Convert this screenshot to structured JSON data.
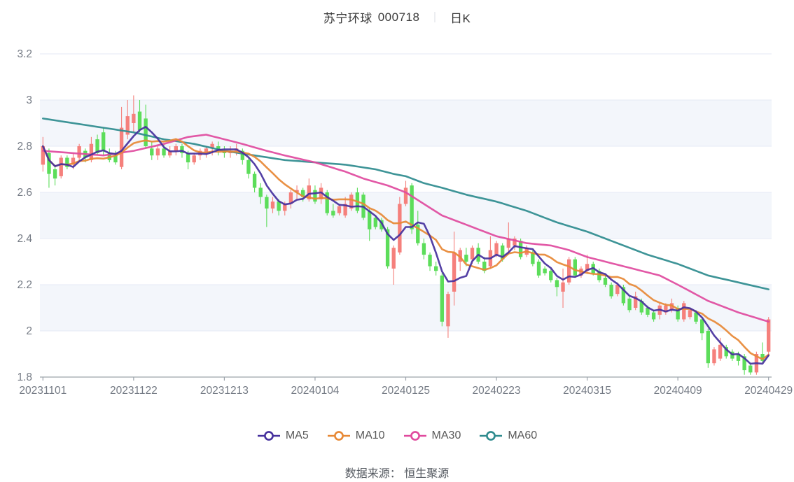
{
  "title": {
    "stock_name": "苏宁环球",
    "stock_code": "000718",
    "separator": "｜",
    "period": "日K"
  },
  "footer": {
    "source_label": "数据来源：",
    "source_name": "恒生聚源"
  },
  "legend": [
    {
      "label": "MA5",
      "color": "#45309d"
    },
    {
      "label": "MA10",
      "color": "#e78835"
    },
    {
      "label": "MA30",
      "color": "#e04a9e"
    },
    {
      "label": "MA60",
      "color": "#2e8b8e"
    }
  ],
  "chart_data": {
    "type": "candlestick",
    "title": "苏宁环球 000718 日K",
    "ylim": [
      1.8,
      3.2
    ],
    "y_tick_labels": [
      "1.8",
      "2",
      "2.2",
      "2.4",
      "2.6",
      "2.8",
      "3",
      "3.2"
    ],
    "y_tick_values": [
      1.8,
      2.0,
      2.2,
      2.4,
      2.6,
      2.8,
      3.0,
      3.2
    ],
    "x_tick_labels": [
      "20231101",
      "20231122",
      "20231213",
      "20240104",
      "20240125",
      "20240223",
      "20240315",
      "20240409",
      "20240429"
    ],
    "x_tick_every": 15,
    "grid": "horizontal-bands",
    "legend_position": "bottom",
    "up_color": "#f5807c",
    "down_color": "#5cdd5a",
    "band_fill": "#f3f6fb",
    "grid_color": "#e4eaf4",
    "axis_color": "#9ca3ab",
    "label_color": "#757b85",
    "columns": [
      "date",
      "open",
      "high",
      "low",
      "close"
    ],
    "candles": [
      [
        "20231101",
        2.72,
        2.84,
        2.69,
        2.8
      ],
      [
        "20231102",
        2.77,
        2.79,
        2.62,
        2.68
      ],
      [
        "20231103",
        2.7,
        2.72,
        2.63,
        2.66
      ],
      [
        "20231106",
        2.67,
        2.76,
        2.66,
        2.75
      ],
      [
        "20231107",
        2.75,
        2.76,
        2.7,
        2.71
      ],
      [
        "20231108",
        2.72,
        2.77,
        2.7,
        2.75
      ],
      [
        "20231109",
        2.75,
        2.81,
        2.73,
        2.8
      ],
      [
        "20231110",
        2.78,
        2.79,
        2.73,
        2.75
      ],
      [
        "20231113",
        2.74,
        2.84,
        2.73,
        2.81
      ],
      [
        "20231114",
        2.83,
        2.85,
        2.76,
        2.77
      ],
      [
        "20231115",
        2.86,
        2.88,
        2.76,
        2.78
      ],
      [
        "20231116",
        2.77,
        2.79,
        2.73,
        2.74
      ],
      [
        "20231117",
        2.76,
        2.78,
        2.72,
        2.73
      ],
      [
        "20231120",
        2.71,
        2.97,
        2.7,
        2.88
      ],
      [
        "20231121",
        2.85,
        3.0,
        2.83,
        2.93
      ],
      [
        "20231122",
        2.9,
        3.02,
        2.86,
        2.94
      ],
      [
        "20231123",
        2.95,
        3.0,
        2.86,
        2.87
      ],
      [
        "20231124",
        2.92,
        2.98,
        2.79,
        2.8
      ],
      [
        "20231127",
        2.79,
        2.82,
        2.74,
        2.76
      ],
      [
        "20231128",
        2.76,
        2.8,
        2.74,
        2.79
      ],
      [
        "20231129",
        2.79,
        2.81,
        2.75,
        2.76
      ],
      [
        "20231130",
        2.76,
        2.8,
        2.75,
        2.78
      ],
      [
        "20231201",
        2.78,
        2.81,
        2.76,
        2.8
      ],
      [
        "20231204",
        2.8,
        2.81,
        2.75,
        2.77
      ],
      [
        "20231205",
        2.77,
        2.78,
        2.7,
        2.73
      ],
      [
        "20231206",
        2.73,
        2.77,
        2.72,
        2.76
      ],
      [
        "20231207",
        2.76,
        2.79,
        2.74,
        2.78
      ],
      [
        "20231208",
        2.77,
        2.8,
        2.75,
        2.79
      ],
      [
        "20231211",
        2.79,
        2.82,
        2.76,
        2.81
      ],
      [
        "20231212",
        2.8,
        2.82,
        2.76,
        2.78
      ],
      [
        "20231213",
        2.78,
        2.8,
        2.75,
        2.77
      ],
      [
        "20231214",
        2.77,
        2.8,
        2.75,
        2.78
      ],
      [
        "20231215",
        2.78,
        2.81,
        2.76,
        2.79
      ],
      [
        "20231218",
        2.78,
        2.79,
        2.72,
        2.74
      ],
      [
        "20231219",
        2.74,
        2.75,
        2.66,
        2.68
      ],
      [
        "20231220",
        2.68,
        2.69,
        2.6,
        2.62
      ],
      [
        "20231221",
        2.62,
        2.64,
        2.55,
        2.58
      ],
      [
        "20231222",
        2.58,
        2.59,
        2.45,
        2.53
      ],
      [
        "20231225",
        2.53,
        2.58,
        2.51,
        2.56
      ],
      [
        "20231226",
        2.56,
        2.57,
        2.5,
        2.52
      ],
      [
        "20231227",
        2.52,
        2.56,
        2.5,
        2.55
      ],
      [
        "20231228",
        2.55,
        2.61,
        2.53,
        2.6
      ],
      [
        "20231229",
        2.6,
        2.63,
        2.57,
        2.61
      ],
      [
        "20240102",
        2.61,
        2.62,
        2.56,
        2.58
      ],
      [
        "20240103",
        2.57,
        2.66,
        2.56,
        2.63
      ],
      [
        "20240104",
        2.61,
        2.63,
        2.55,
        2.56
      ],
      [
        "20240105",
        2.57,
        2.64,
        2.55,
        2.62
      ],
      [
        "20240108",
        2.6,
        2.61,
        2.5,
        2.51
      ],
      [
        "20240109",
        2.52,
        2.55,
        2.49,
        2.5
      ],
      [
        "20240110",
        2.51,
        2.55,
        2.5,
        2.54
      ],
      [
        "20240111",
        2.5,
        2.58,
        2.49,
        2.55
      ],
      [
        "20240112",
        2.53,
        2.6,
        2.52,
        2.59
      ],
      [
        "20240115",
        2.6,
        2.62,
        2.51,
        2.52
      ],
      [
        "20240116",
        2.59,
        2.6,
        2.48,
        2.49
      ],
      [
        "20240117",
        2.52,
        2.53,
        2.39,
        2.44
      ],
      [
        "20240118",
        2.49,
        2.5,
        2.44,
        2.45
      ],
      [
        "20240119",
        2.48,
        2.49,
        2.43,
        2.44
      ],
      [
        "20240122",
        2.44,
        2.45,
        2.27,
        2.28
      ],
      [
        "20240123",
        2.27,
        2.37,
        2.2,
        2.36
      ],
      [
        "20240124",
        2.34,
        2.58,
        2.33,
        2.55
      ],
      [
        "20240125",
        2.55,
        2.65,
        2.54,
        2.62
      ],
      [
        "20240126",
        2.63,
        2.64,
        2.42,
        2.44
      ],
      [
        "20240129",
        2.46,
        2.52,
        2.37,
        2.38
      ],
      [
        "20240130",
        2.38,
        2.4,
        2.31,
        2.33
      ],
      [
        "20240131",
        2.33,
        2.34,
        2.26,
        2.28
      ],
      [
        "20240201",
        2.28,
        2.3,
        2.24,
        2.26
      ],
      [
        "20240202",
        2.24,
        2.25,
        2.02,
        2.04
      ],
      [
        "20240205",
        2.02,
        2.17,
        1.97,
        2.16
      ],
      [
        "20240206",
        2.17,
        2.43,
        2.11,
        2.34
      ],
      [
        "20240207",
        2.3,
        2.36,
        2.26,
        2.35
      ],
      [
        "20240208",
        2.33,
        2.36,
        2.28,
        2.3
      ],
      [
        "20240219",
        2.31,
        2.37,
        2.29,
        2.36
      ],
      [
        "20240220",
        2.36,
        2.38,
        2.29,
        2.3
      ],
      [
        "20240221",
        2.3,
        2.32,
        2.25,
        2.26
      ],
      [
        "20240222",
        2.28,
        2.41,
        2.27,
        2.35
      ],
      [
        "20240223",
        2.33,
        2.39,
        2.32,
        2.38
      ],
      [
        "20240226",
        2.37,
        2.38,
        2.3,
        2.31
      ],
      [
        "20240227",
        2.36,
        2.47,
        2.33,
        2.4
      ],
      [
        "20240228",
        2.37,
        2.41,
        2.35,
        2.4
      ],
      [
        "20240229",
        2.39,
        2.4,
        2.31,
        2.32
      ],
      [
        "20240301",
        2.33,
        2.37,
        2.32,
        2.36
      ],
      [
        "20240304",
        2.34,
        2.35,
        2.28,
        2.29
      ],
      [
        "20240305",
        2.3,
        2.31,
        2.23,
        2.24
      ],
      [
        "20240306",
        2.27,
        2.28,
        2.24,
        2.25
      ],
      [
        "20240307",
        2.26,
        2.27,
        2.21,
        2.22
      ],
      [
        "20240308",
        2.22,
        2.23,
        2.15,
        2.19
      ],
      [
        "20240311",
        2.17,
        2.27,
        2.1,
        2.21
      ],
      [
        "20240312",
        2.21,
        2.32,
        2.2,
        2.31
      ],
      [
        "20240313",
        2.31,
        2.32,
        2.23,
        2.24
      ],
      [
        "20240314",
        2.24,
        2.28,
        2.23,
        2.27
      ],
      [
        "20240315",
        2.26,
        2.33,
        2.25,
        2.29
      ],
      [
        "20240318",
        2.29,
        2.3,
        2.24,
        2.25
      ],
      [
        "20240319",
        2.26,
        2.27,
        2.21,
        2.22
      ],
      [
        "20240320",
        2.23,
        2.24,
        2.19,
        2.2
      ],
      [
        "20240321",
        2.2,
        2.21,
        2.14,
        2.15
      ],
      [
        "20240322",
        2.16,
        2.21,
        2.15,
        2.2
      ],
      [
        "20240325",
        2.19,
        2.2,
        2.11,
        2.12
      ],
      [
        "20240326",
        2.14,
        2.15,
        2.08,
        2.09
      ],
      [
        "20240327",
        2.1,
        2.17,
        2.09,
        2.15
      ],
      [
        "20240328",
        2.13,
        2.14,
        2.07,
        2.08
      ],
      [
        "20240329",
        2.1,
        2.11,
        2.06,
        2.07
      ],
      [
        "20240401",
        2.08,
        2.09,
        2.04,
        2.05
      ],
      [
        "20240402",
        2.07,
        2.12,
        2.05,
        2.11
      ],
      [
        "20240403",
        2.08,
        2.12,
        2.07,
        2.11
      ],
      [
        "20240408",
        2.09,
        2.14,
        2.08,
        2.12
      ],
      [
        "20240409",
        2.1,
        2.11,
        2.04,
        2.05
      ],
      [
        "20240410",
        2.05,
        2.13,
        2.04,
        2.12
      ],
      [
        "20240411",
        2.06,
        2.1,
        2.05,
        2.09
      ],
      [
        "20240412",
        2.08,
        2.09,
        2.03,
        2.04
      ],
      [
        "20240415",
        2.05,
        2.06,
        1.96,
        1.99
      ],
      [
        "20240416",
        2.0,
        2.01,
        1.84,
        1.86
      ],
      [
        "20240417",
        1.86,
        1.93,
        1.85,
        1.92
      ],
      [
        "20240418",
        1.88,
        1.97,
        1.87,
        1.94
      ],
      [
        "20240419",
        1.93,
        1.94,
        1.88,
        1.89
      ],
      [
        "20240422",
        1.91,
        1.92,
        1.87,
        1.88
      ],
      [
        "20240423",
        1.9,
        1.91,
        1.85,
        1.87
      ],
      [
        "20240424",
        1.89,
        1.9,
        1.81,
        1.83
      ],
      [
        "20240425",
        1.85,
        1.86,
        1.81,
        1.82
      ],
      [
        "20240426",
        1.82,
        1.91,
        1.81,
        1.9
      ],
      [
        "20240428",
        1.9,
        1.95,
        1.86,
        1.87
      ],
      [
        "20240429",
        1.91,
        2.06,
        1.89,
        2.05
      ]
    ],
    "series": [
      {
        "name": "MA5",
        "color": "#45309d",
        "derive": "sma",
        "window": 5
      },
      {
        "name": "MA10",
        "color": "#e78835",
        "derive": "sma",
        "window": 10
      },
      {
        "name": "MA30",
        "color": "#e04a9e",
        "derive": "waypoints",
        "waypoints": [
          [
            0,
            2.78
          ],
          [
            5,
            2.77
          ],
          [
            10,
            2.76
          ],
          [
            15,
            2.78
          ],
          [
            20,
            2.81
          ],
          [
            24,
            2.84
          ],
          [
            27,
            2.85
          ],
          [
            30,
            2.83
          ],
          [
            33,
            2.81
          ],
          [
            37,
            2.78
          ],
          [
            40,
            2.76
          ],
          [
            45,
            2.73
          ],
          [
            50,
            2.69
          ],
          [
            53,
            2.66
          ],
          [
            57,
            2.63
          ],
          [
            60,
            2.6
          ],
          [
            63,
            2.55
          ],
          [
            66,
            2.5
          ],
          [
            70,
            2.46
          ],
          [
            73,
            2.43
          ],
          [
            75,
            2.41
          ],
          [
            80,
            2.38
          ],
          [
            84,
            2.37
          ],
          [
            87,
            2.35
          ],
          [
            90,
            2.32
          ],
          [
            93,
            2.3
          ],
          [
            96,
            2.28
          ],
          [
            99,
            2.26
          ],
          [
            102,
            2.24
          ],
          [
            105,
            2.2
          ],
          [
            110,
            2.13
          ],
          [
            115,
            2.08
          ],
          [
            120,
            2.04
          ]
        ]
      },
      {
        "name": "MA60",
        "color": "#2e8b8e",
        "derive": "waypoints",
        "waypoints": [
          [
            0,
            2.92
          ],
          [
            5,
            2.9
          ],
          [
            10,
            2.88
          ],
          [
            15,
            2.86
          ],
          [
            20,
            2.83
          ],
          [
            25,
            2.81
          ],
          [
            30,
            2.78
          ],
          [
            35,
            2.76
          ],
          [
            40,
            2.74
          ],
          [
            45,
            2.73
          ],
          [
            50,
            2.72
          ],
          [
            55,
            2.7
          ],
          [
            58,
            2.68
          ],
          [
            60,
            2.67
          ],
          [
            63,
            2.64
          ],
          [
            66,
            2.62
          ],
          [
            70,
            2.59
          ],
          [
            75,
            2.56
          ],
          [
            80,
            2.52
          ],
          [
            85,
            2.47
          ],
          [
            90,
            2.43
          ],
          [
            95,
            2.38
          ],
          [
            100,
            2.33
          ],
          [
            105,
            2.29
          ],
          [
            110,
            2.24
          ],
          [
            115,
            2.21
          ],
          [
            120,
            2.18
          ]
        ]
      }
    ]
  }
}
